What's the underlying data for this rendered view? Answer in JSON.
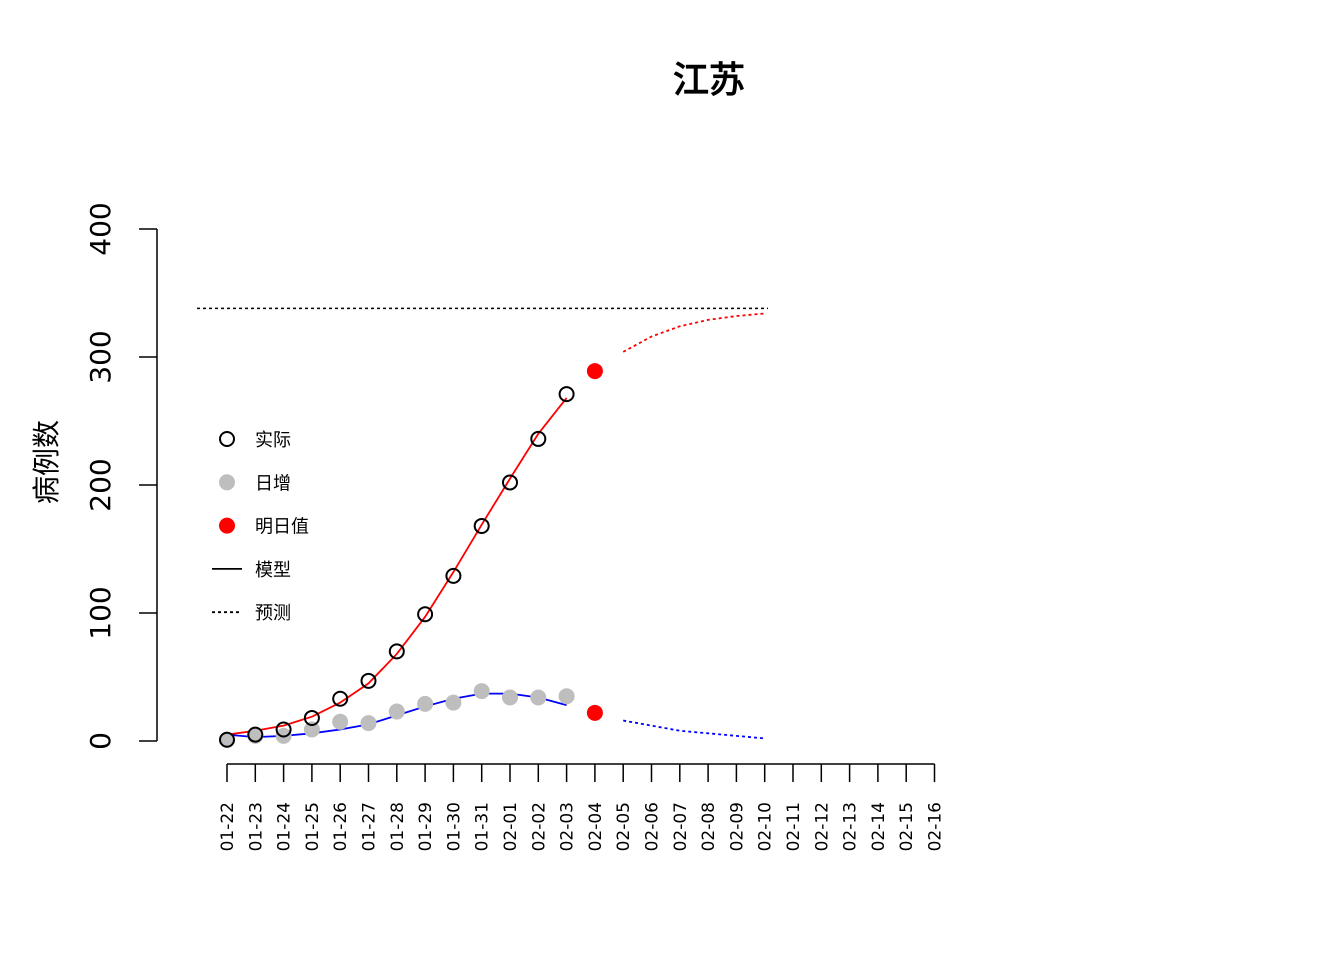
{
  "chart_data": {
    "type": "line",
    "title": "江苏",
    "ylabel": "病例数",
    "xlabel": "",
    "ylim": [
      0,
      400
    ],
    "yticks": [
      "0",
      "100",
      "200",
      "300",
      "400"
    ],
    "categories": [
      "01-22",
      "01-23",
      "01-24",
      "01-25",
      "01-26",
      "01-27",
      "01-28",
      "01-29",
      "01-30",
      "01-31",
      "02-01",
      "02-02",
      "02-03",
      "02-04",
      "02-05",
      "02-06",
      "02-07",
      "02-08",
      "02-09",
      "02-10",
      "02-11",
      "02-12",
      "02-13",
      "02-14",
      "02-15",
      "02-16"
    ],
    "grid": false,
    "legend_position": "left",
    "legend": [
      {
        "label": "实际",
        "marker": "open-circle"
      },
      {
        "label": "日增",
        "marker": "gray-dot"
      },
      {
        "label": "明日值",
        "marker": "red-dot"
      },
      {
        "label": "模型",
        "marker": "solid-line"
      },
      {
        "label": "预测",
        "marker": "dotted-line"
      }
    ],
    "actual": {
      "x": [
        "01-22",
        "01-23",
        "01-24",
        "01-25",
        "01-26",
        "01-27",
        "01-28",
        "01-29",
        "01-30",
        "01-31",
        "02-01",
        "02-02",
        "02-03"
      ],
      "values": [
        1,
        5,
        9,
        18,
        33,
        47,
        70,
        99,
        129,
        168,
        202,
        236,
        271
      ]
    },
    "daily": {
      "x": [
        "01-22",
        "01-23",
        "01-24",
        "01-25",
        "01-26",
        "01-27",
        "01-28",
        "01-29",
        "01-30",
        "01-31",
        "02-01",
        "02-02",
        "02-03"
      ],
      "values": [
        1,
        4,
        4,
        9,
        15,
        14,
        23,
        29,
        30,
        39,
        34,
        34,
        35
      ]
    },
    "tomorrow": {
      "x": "02-04",
      "cumulative": 289,
      "daily": 22
    },
    "model_cumulative": {
      "x": [
        "01-22",
        "01-23",
        "01-24",
        "01-25",
        "01-26",
        "01-27",
        "01-28",
        "01-29",
        "01-30",
        "01-31",
        "02-01",
        "02-02",
        "02-03"
      ],
      "values": [
        5,
        8,
        12,
        19,
        30,
        45,
        68,
        97,
        132,
        169,
        205,
        240,
        268
      ]
    },
    "model_daily": {
      "x": [
        "01-22",
        "01-23",
        "01-24",
        "01-25",
        "01-26",
        "01-27",
        "01-28",
        "01-29",
        "01-30",
        "01-31",
        "02-01",
        "02-02",
        "02-03"
      ],
      "values": [
        5,
        3,
        4,
        6,
        9,
        13,
        20,
        27,
        33,
        37,
        37,
        34,
        28
      ]
    },
    "forecast_cumulative": {
      "x": [
        "02-05",
        "02-06",
        "02-07",
        "02-08",
        "02-09",
        "02-10"
      ],
      "values": [
        304,
        316,
        324,
        329,
        332,
        334
      ]
    },
    "forecast_daily": {
      "x": [
        "02-05",
        "02-06",
        "02-07",
        "02-08",
        "02-09",
        "02-10"
      ],
      "values": [
        16,
        12,
        8,
        6,
        4,
        2
      ]
    },
    "asymptote": 338,
    "colors": {
      "model_cumulative": "#ff0000",
      "model_daily": "#0000ff",
      "tomorrow": "#ff0000",
      "daily_points": "#bebebe",
      "asymptote": "#000000"
    }
  }
}
